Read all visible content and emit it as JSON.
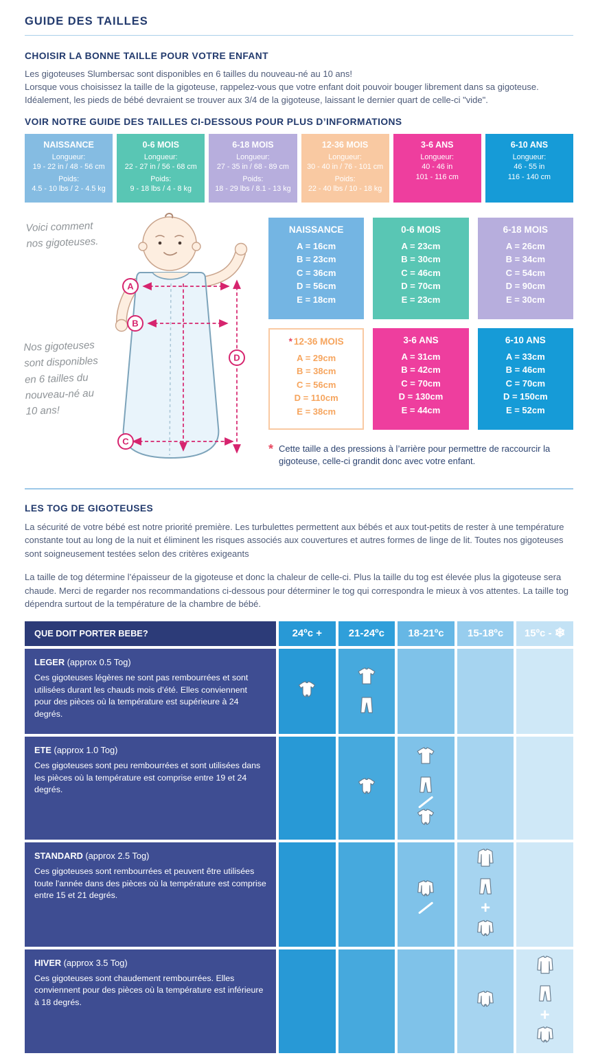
{
  "page": {
    "title": "GUIDE DES TAILLES"
  },
  "intro": {
    "heading": "CHOISIR LA BONNE TAILLE POUR VOTRE ENFANT",
    "paragraph": "Les gigoteuses Slumbersac sont disponibles en 6 tailles du nouveau-né au 10 ans!\nLorsque vous choisissez la taille de la gigoteuse, rappelez-vous que votre enfant doit pouvoir bouger librement dans sa gigoteuse.\nIdéalement, les pieds de bébé devraient se trouver aux 3/4 de la gigoteuse, laissant le dernier quart de celle-ci \"vide\".",
    "guide_heading": "VOIR NOTRE GUIDE DES TAILLES CI-DESSOUS POUR PLUS D’INFORMATIONS"
  },
  "size_cards": [
    {
      "title": "NAISSANCE",
      "length_label": "Longueur:",
      "length": "19 - 22 in / 48 - 56 cm",
      "weight_label": "Poids:",
      "weight": "4.5 - 10 lbs / 2 - 4.5 kg"
    },
    {
      "title": "0-6 MOIS",
      "length_label": "Longueur:",
      "length": "22 - 27 in / 56 - 68 cm",
      "weight_label": "Poids:",
      "weight": "9 - 18 lbs / 4 - 8 kg"
    },
    {
      "title": "6-18 MOIS",
      "length_label": "Longueur:",
      "length": "27 - 35 in / 68 - 89 cm",
      "weight_label": "Poids:",
      "weight": "18 - 29 lbs / 8.1 - 13 kg"
    },
    {
      "title": "12-36 MOIS",
      "length_label": "Longueur:",
      "length": "30 - 40 in / 76 - 101 cm",
      "weight_label": "Poids:",
      "weight": "22 - 40 lbs / 10 - 18 kg"
    },
    {
      "title": "3-6 ANS",
      "length_label": "Longueur:",
      "length": "40 - 46 in",
      "length2": "101 - 116 cm"
    },
    {
      "title": "6-10 ANS",
      "length_label": "Longueur:",
      "length": "46 - 55 in",
      "length2": "116 - 140 cm"
    }
  ],
  "diagram": {
    "caption_top": "Voici comment\nnos gigoteuses.",
    "caption_side": "Nos gigoteuses\nsont disponibles\nen 6 tailles du\nnouveau-né au\n10 ans!",
    "labels": [
      "A",
      "B",
      "C",
      "D"
    ],
    "arrow_color": "#d6246e"
  },
  "measure_boxes": [
    {
      "title": "NAISSANCE",
      "lines": [
        "A = 16cm",
        "B = 23cm",
        "C = 36cm",
        "D = 56cm",
        "E = 18cm"
      ]
    },
    {
      "title": "0-6 MOIS",
      "lines": [
        "A = 23cm",
        "B = 30cm",
        "C = 46cm",
        "D = 70cm",
        "E = 23cm"
      ]
    },
    {
      "title": "6-18 MOIS",
      "lines": [
        "A = 26cm",
        "B = 34cm",
        "C = 54cm",
        "D = 90cm",
        "E = 30cm"
      ]
    },
    {
      "title": "12-36 MOIS",
      "asterisk": "*",
      "lines": [
        "A = 29cm",
        "B = 38cm",
        "C = 56cm",
        "D = 110cm",
        "E = 38cm"
      ]
    },
    {
      "title": "3-6 ANS",
      "lines": [
        "A = 31cm",
        "B = 42cm",
        "C = 70cm",
        "D = 130cm",
        "E = 44cm"
      ]
    },
    {
      "title": "6-10 ANS",
      "lines": [
        "A = 33cm",
        "B = 46cm",
        "C = 70cm",
        "D = 150cm",
        "E = 52cm"
      ]
    }
  ],
  "footnote": {
    "asterisk": "*",
    "text": "Cette taille a des pressions à l’arrière pour permettre de raccourcir la gigoteuse, celle-ci grandit donc avec votre enfant."
  },
  "tog": {
    "heading": "LES TOG DE GIGOTEUSES",
    "para1": "La sécurité de votre bébé est notre priorité première. Les turbulettes permettent aux bébés et aux tout-petits de rester à une température constante tout au long de la nuit et éliminent les risques associés aux couvertures et autres formes de linge de lit. Toutes nos gigoteuses sont soigneusement testées selon des critères exigeants",
    "para2": "La taille de tog détermine l’épaisseur de la gigoteuse et donc la chaleur de celle-ci. Plus la taille du tog est élevée plus la gigoteuse sera chaude. Merci de regarder nos recommandations ci-dessous  pour déterminer le tog qui correspondra le mieux à vos attentes. La taille tog dépendra surtout de la température de la chambre de bébé."
  },
  "tog_table": {
    "corner": "QUE DOIT PORTER BEBE?",
    "columns": [
      {
        "label": "24ºc +"
      },
      {
        "label": "21-24ºc"
      },
      {
        "label": "18-21ºc"
      },
      {
        "label": "15-18ºc"
      },
      {
        "label": "15ºc -",
        "icon": "snowflake-icon"
      }
    ],
    "rows": [
      {
        "name": "LEGER",
        "tog": "(approx 0.5 Tog)",
        "text": "Ces gigoteuses légères ne sont pas rembourrées et sont utilisées durant les chauds mois d’été. Elles conviennent pour des pièces où la température est supérieure à 24 degrés.",
        "cells": [
          [
            "bodysuit-short"
          ],
          [
            "tshirt",
            "pants"
          ],
          [],
          [],
          []
        ]
      },
      {
        "name": "ETE",
        "tog": "(approx 1.0 Tog)",
        "text": "Ces gigoteuses sont peu rembourrées et sont utilisées dans les pièces où la température est comprise entre 19 et 24 degrés.",
        "cells": [
          [],
          [
            "bodysuit-short"
          ],
          [
            "tshirt",
            "pants",
            "slash",
            "bodysuit-short"
          ],
          [],
          []
        ]
      },
      {
        "name": "STANDARD",
        "tog": "(approx 2.5 Tog)",
        "text": "Ces gigoteuses sont rembourrées et peuvent être utilisées toute l'année dans des pièces où la température est comprise entre 15 et 21 degrés.",
        "cells": [
          [],
          [],
          [
            "bodysuit-long",
            "slash"
          ],
          [
            "top-long",
            "pants",
            "plus",
            "bodysuit-long"
          ],
          []
        ]
      },
      {
        "name": "HIVER",
        "tog": "(approx 3.5 Tog)",
        "text": "Ces gigoteuses sont chaudement rembourrées. Elles conviennent pour des pièces où la température est inférieure à 18 degrés.",
        "cells": [
          [],
          [],
          [],
          [
            "bodysuit-long"
          ],
          [
            "top-long",
            "pants",
            "plus",
            "bodysuit-long"
          ]
        ]
      }
    ]
  },
  "colors": {
    "heading_navy": "#223a6d",
    "body_text": "#4d5a78",
    "accent_pink": "#d6246e",
    "asterisk_red": "#e8475f",
    "card_naissance": "#85bce2",
    "card_0_6_mois": "#59c6b4",
    "card_6_18_mois": "#b7aedd",
    "card_12_36_mois": "#f9c9a2",
    "card_3_6_ans": "#ee3e9e",
    "card_6_10_ans": "#169bd7",
    "table_corner": "#2c3b78",
    "table_row_label": "#3e4d92",
    "col_24": "#2899d6",
    "col_21_24": "#46a9dd",
    "col_18_21": "#7fc2e9",
    "col_15_18": "#a6d4f0",
    "col_15": "#cfe8f7"
  }
}
